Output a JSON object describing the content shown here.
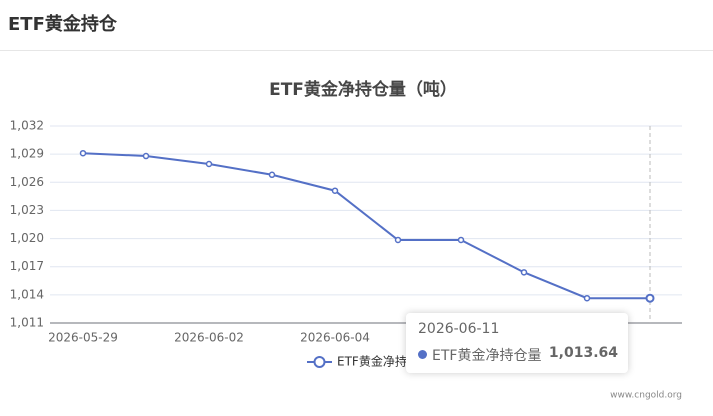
{
  "header": {
    "title": "ETF黄金持仓"
  },
  "chart_data": {
    "type": "line",
    "title": "ETF黄金净持仓量（吨）",
    "categories": [
      "2026-05-29",
      null,
      "2026-06-02",
      null,
      "2026-06-04",
      null,
      null,
      null,
      null,
      null
    ],
    "series": [
      {
        "name": "ETF黄金净持仓量",
        "color": "#5470c6",
        "values": [
          1029.1,
          1028.8,
          1027.95,
          1026.8,
          1025.1,
          1019.85,
          1019.85,
          1016.4,
          1013.64,
          1013.64
        ]
      }
    ],
    "ylim": [
      1011,
      1032
    ],
    "yticks": [
      {
        "value": 1011,
        "label": "1,011"
      },
      {
        "value": 1014,
        "label": "1,014"
      },
      {
        "value": 1017,
        "label": "1,017"
      },
      {
        "value": 1020,
        "label": "1,020"
      },
      {
        "value": 1023,
        "label": "1,023"
      },
      {
        "value": 1026,
        "label": "1,026"
      },
      {
        "value": 1029,
        "label": "1,029"
      },
      {
        "value": 1032,
        "label": "1,032"
      }
    ],
    "grid": true,
    "tooltip": {
      "title": "2026-06-11",
      "label": "ETF黄金净持仓量",
      "value": "1,013.64"
    }
  },
  "footer": {
    "source": "www.cngold.org"
  }
}
